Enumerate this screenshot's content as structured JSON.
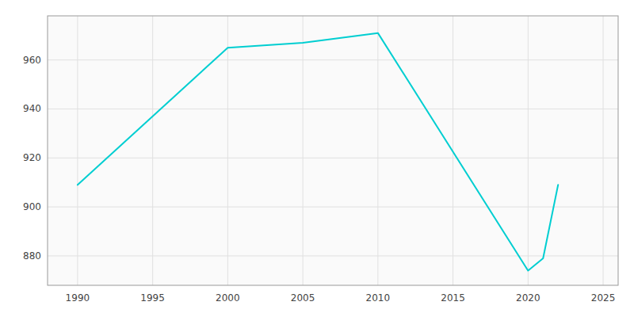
{
  "chart_data": {
    "type": "line",
    "x": [
      1990,
      2000,
      2005,
      2010,
      2020,
      2021,
      2022
    ],
    "values": [
      909,
      965,
      967,
      971,
      874,
      879,
      909
    ],
    "color": "#00CED1",
    "xlim": [
      1988,
      2026
    ],
    "ylim": [
      868,
      978
    ],
    "xticks": [
      1990,
      1995,
      2000,
      2005,
      2010,
      2015,
      2020,
      2025
    ],
    "yticks": [
      880,
      900,
      920,
      940,
      960
    ],
    "grid": true
  }
}
